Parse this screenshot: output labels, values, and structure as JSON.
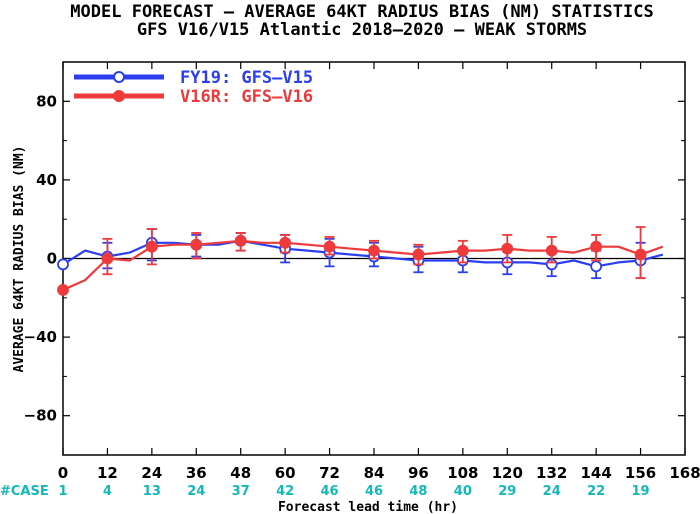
{
  "title_line1": "MODEL FORECAST – AVERAGE 64KT RADIUS BIAS (NM) STATISTICS",
  "title_line2": "GFS V16/V15 Atlantic 2018–2020 – WEAK STORMS",
  "colors": {
    "case": "#14b8b8",
    "axis": "#000000"
  },
  "chart_data": {
    "type": "line",
    "xlabel": "Forecast lead time (hr)",
    "ylabel": "AVERAGE 64KT RADIUS BIAS (NM)",
    "xlim": [
      0,
      168
    ],
    "ylim": [
      -100,
      100
    ],
    "x_ticks": [
      0,
      12,
      24,
      36,
      48,
      60,
      72,
      84,
      96,
      108,
      120,
      132,
      144,
      156,
      168
    ],
    "y_ticks": [
      -80,
      -40,
      0,
      40,
      80
    ],
    "y_tick_labels": [
      "−80",
      "−40",
      "0",
      "40",
      "80"
    ],
    "zero_line": true,
    "legend_position": "top-left",
    "case_label": "#CASE",
    "cases": [
      {
        "x": 0,
        "n": "1"
      },
      {
        "x": 12,
        "n": "4"
      },
      {
        "x": 24,
        "n": "13"
      },
      {
        "x": 36,
        "n": "24"
      },
      {
        "x": 48,
        "n": "37"
      },
      {
        "x": 60,
        "n": "42"
      },
      {
        "x": 72,
        "n": "46"
      },
      {
        "x": 84,
        "n": "46"
      },
      {
        "x": 96,
        "n": "48"
      },
      {
        "x": 108,
        "n": "40"
      },
      {
        "x": 120,
        "n": "29"
      },
      {
        "x": 132,
        "n": "24"
      },
      {
        "x": 144,
        "n": "22"
      },
      {
        "x": 156,
        "n": "19"
      }
    ],
    "series": [
      {
        "name": "FY19: GFS–V15",
        "color": "#2b3ff0",
        "marker": "open-circle",
        "x": [
          0,
          6,
          12,
          18,
          24,
          30,
          36,
          42,
          48,
          54,
          60,
          66,
          72,
          78,
          84,
          90,
          96,
          102,
          108,
          114,
          120,
          126,
          132,
          138,
          144,
          150,
          156,
          162
        ],
        "y": [
          -3,
          4,
          1,
          3,
          8,
          8,
          7,
          7,
          9,
          7,
          5,
          4,
          3,
          2,
          1,
          0,
          -1,
          -1,
          -1,
          -2,
          -2,
          -2,
          -3,
          -1,
          -4,
          -2,
          -1,
          2
        ],
        "marker_x": [
          0,
          12,
          24,
          36,
          48,
          60,
          72,
          84,
          96,
          108,
          120,
          132,
          144,
          156
        ],
        "err_low": [
          null,
          -5,
          -1,
          1,
          4,
          -2,
          -4,
          -4,
          -7,
          -7,
          -8,
          -9,
          -10,
          -10
        ],
        "err_high": [
          null,
          8,
          15,
          12,
          13,
          12,
          10,
          8,
          6,
          5,
          5,
          4,
          4,
          8
        ]
      },
      {
        "name": "V16R: GFS–V16",
        "color": "#ee3a3a",
        "marker": "filled-circle",
        "x": [
          0,
          6,
          12,
          18,
          24,
          30,
          36,
          42,
          48,
          54,
          60,
          66,
          72,
          78,
          84,
          90,
          96,
          102,
          108,
          114,
          120,
          126,
          132,
          138,
          144,
          150,
          156,
          162
        ],
        "y": [
          -16,
          -11,
          0,
          -1,
          6,
          7,
          7,
          8,
          9,
          8,
          8,
          7,
          6,
          5,
          4,
          3,
          2,
          3,
          4,
          4,
          5,
          4,
          4,
          3,
          6,
          6,
          2,
          6
        ],
        "marker_x": [
          0,
          12,
          24,
          36,
          48,
          60,
          72,
          84,
          96,
          108,
          120,
          132,
          144,
          156
        ],
        "err_low": [
          null,
          -8,
          -3,
          0,
          4,
          3,
          2,
          0,
          -3,
          -2,
          -2,
          -2,
          -1,
          -10
        ],
        "err_high": [
          null,
          10,
          15,
          13,
          13,
          12,
          11,
          9,
          7,
          9,
          12,
          11,
          12,
          16
        ]
      }
    ]
  }
}
